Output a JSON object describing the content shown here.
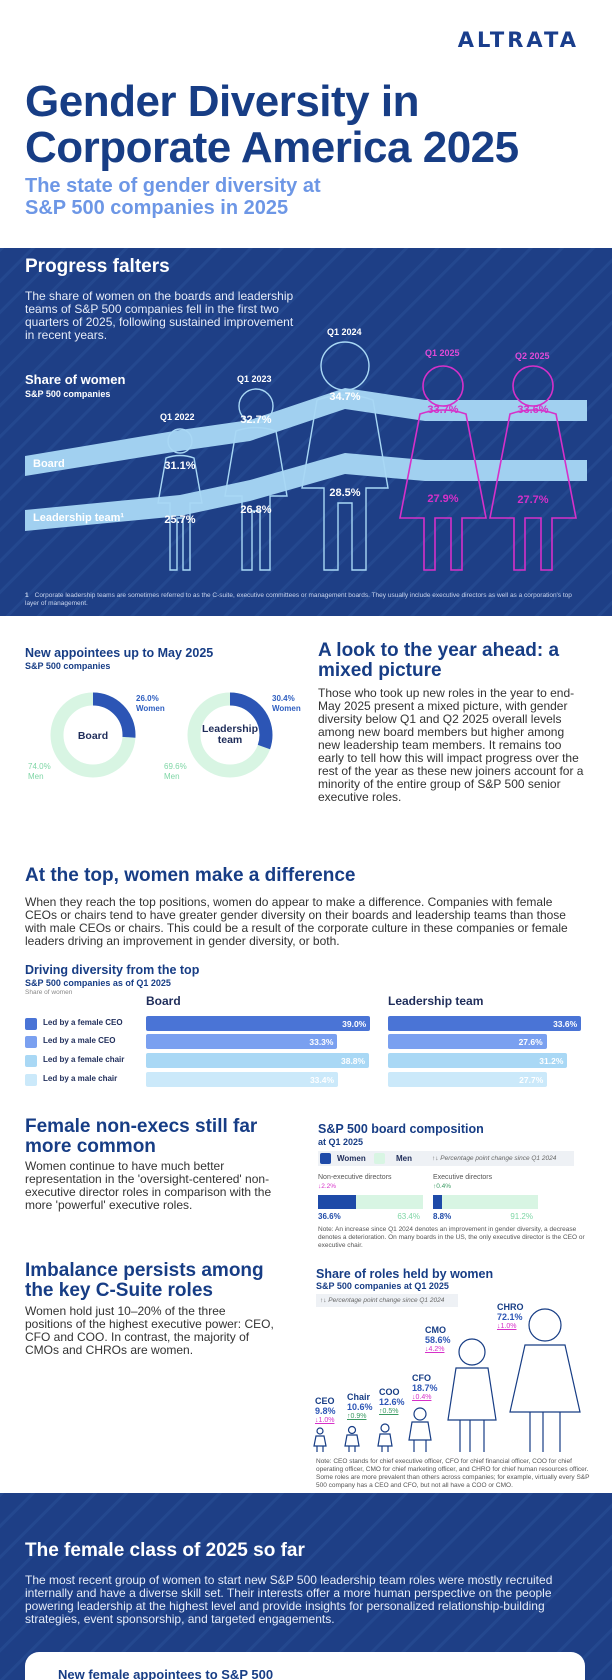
{
  "brand": "ALTRATA",
  "header": {
    "title": "Gender Diversity in Corporate America 2025",
    "subtitle": "The state of gender diversity at S&P 500 companies in 2025"
  },
  "progress": {
    "title": "Progress falters",
    "description": "The share of women on the boards and leadership teams of S&P 500 companies fell in the first two quarters of 2025, following sustained improvement in recent years.",
    "chart_heading": "Share of women",
    "chart_subheading": "S&P 500 companies",
    "board_label": "Board",
    "leadership_label": "Leadership team¹",
    "footnote_marker": "1",
    "footnote": "Corporate leadership teams are sometimes referred to as the C-suite, executive committees or management boards. They usually include executive directors as well as a corporation's top layer of management."
  },
  "chart_data": [
    {
      "type": "line",
      "title": "Share of women",
      "subtitle": "S&P 500 companies",
      "categories": [
        "Q1 2022",
        "Q1 2023",
        "Q1 2024",
        "Q1 2025",
        "Q2 2025"
      ],
      "series": [
        {
          "name": "Board",
          "values": [
            31.1,
            32.7,
            34.7,
            33.7,
            33.6
          ],
          "labels": [
            "31.1%",
            "32.7%",
            "34.7%",
            "33.7%",
            "33.6%"
          ]
        },
        {
          "name": "Leadership team¹",
          "values": [
            25.7,
            26.8,
            28.5,
            27.9,
            27.7
          ],
          "labels": [
            "25.7%",
            "26.8%",
            "28.5%",
            "27.9%",
            "27.7%"
          ]
        }
      ]
    },
    {
      "type": "pie",
      "title": "New appointees up to May 2025",
      "subtitle": "S&P 500 companies",
      "charts": [
        {
          "name": "Board",
          "women": 26.0,
          "men": 74.0,
          "women_label": "26.0%",
          "men_label": "74.0%"
        },
        {
          "name": "Leadership team",
          "women": 30.4,
          "men": 69.6,
          "women_label": "30.4%",
          "men_label": "69.6%"
        }
      ],
      "legend": {
        "women": "Women",
        "men": "Men"
      }
    },
    {
      "type": "bar",
      "title": "Driving diversity from the top",
      "subtitle": "S&P 500 companies as of Q1 2025",
      "ylabel": "Share of women",
      "categories": [
        "Led by a female CEO",
        "Led by a male CEO",
        "Led by a female chair",
        "Led by a male chair"
      ],
      "series": [
        {
          "name": "Board",
          "values": [
            39.0,
            33.3,
            38.8,
            33.4
          ],
          "labels": [
            "39.0%",
            "33.3%",
            "38.8%",
            "33.4%"
          ]
        },
        {
          "name": "Leadership team",
          "values": [
            33.6,
            27.6,
            31.2,
            27.7
          ],
          "labels": [
            "33.6%",
            "27.6%",
            "31.2%",
            "27.7%"
          ]
        }
      ]
    },
    {
      "type": "bar",
      "title": "S&P 500 board composition",
      "subtitle": "at Q1 2025",
      "categories": [
        "Non-executive directors",
        "Executive directors"
      ],
      "series": [
        {
          "name": "Women",
          "values": [
            36.6,
            8.8
          ],
          "labels": [
            "36.6%",
            "8.8%"
          ]
        },
        {
          "name": "Men",
          "values": [
            63.4,
            91.2
          ],
          "labels": [
            "63.4%",
            "91.2%"
          ]
        }
      ],
      "changes": [
        "↓2.2%",
        "↑0.4%"
      ]
    },
    {
      "type": "bar",
      "title": "Share of roles held by women",
      "subtitle": "S&P 500 companies at Q1 2025",
      "categories": [
        "CEO",
        "Chair",
        "COO",
        "CFO",
        "CMO",
        "CHRO"
      ],
      "values": [
        9.8,
        10.6,
        12.6,
        18.7,
        58.6,
        72.1
      ],
      "labels": [
        "9.8%",
        "10.6%",
        "12.6%",
        "18.7%",
        "58.6%",
        "72.1%"
      ],
      "changes": [
        "↓1.0%",
        "↑0.9%",
        "↑0.5%",
        "↓0.4%",
        "↓4.2%",
        "↓1.0%"
      ]
    }
  ],
  "appointees": {
    "title": "New appointees up to May 2025",
    "subtitle": "S&P 500 companies",
    "board": {
      "name": "Board",
      "women_pct": "26.0%",
      "men_pct": "74.0%",
      "women": 26.0
    },
    "leadership": {
      "name": "Leadership team",
      "women_pct": "30.4%",
      "men_pct": "69.6%",
      "women": 30.4
    },
    "women_label": "Women",
    "men_label": "Men"
  },
  "year_ahead": {
    "title": "A look to the year ahead: a mixed picture",
    "body": "Those who took up new roles in the year to end-May 2025 present a mixed picture, with gender diversity below Q1 and Q2 2025 overall levels among new board members but higher among new leadership team members. It remains too early to tell how this will impact progress over the rest of the year as these new joiners account for a minority of the entire group of S&P 500 senior executive roles."
  },
  "top": {
    "title": "At the top, women make a difference",
    "body": "When they reach the top positions, women do appear to make a difference. Companies with female CEOs or chairs tend to have greater gender diversity on their boards and leadership teams than those with male CEOs or chairs. This could be a result of the corporate culture in these companies or female leaders driving an improvement in gender diversity, or both.",
    "chart_title": "Driving diversity from the top",
    "chart_subtitle": "S&P 500 companies as of Q1 2025",
    "chart_axis": "Share of women",
    "col_board": "Board",
    "col_leadership": "Leadership team",
    "rows": [
      "Led by a female CEO",
      "Led by a male CEO",
      "Led by a female chair",
      "Led by a male chair"
    ],
    "board_vals": [
      "39.0%",
      "33.3%",
      "38.8%",
      "33.4%"
    ],
    "lead_vals": [
      "33.6%",
      "27.6%",
      "31.2%",
      "27.7%"
    ]
  },
  "nonexec": {
    "title": "Female non-execs still far more common",
    "body": "Women continue to have much better representation in the 'oversight-centered' non-executive director roles in comparison with the more 'powerful' executive roles.",
    "chart_title": "S&P 500 board composition",
    "chart_subtitle": "at Q1 2025",
    "legend_women": "Women",
    "legend_men": "Men",
    "legend_change": "↑↓ Percentage point change since Q1 2024",
    "nonexec_label": "Non-executive directors",
    "nonexec_change": "↓2.2%",
    "nonexec_women": "36.6%",
    "nonexec_men": "63.4%",
    "exec_label": "Executive directors",
    "exec_change": "↑0.4%",
    "exec_women": "8.8%",
    "exec_men": "91.2%",
    "note": "Note: An increase since Q1 2024 denotes an improvement in gender diversity, a decrease denotes a deterioration. On many boards in the US, the only executive director is the CEO or executive chair."
  },
  "csuite": {
    "title": "Imbalance persists among the key C-Suite roles",
    "body": "Women hold just 10–20% of the three positions of the highest executive power: CEO, CFO and COO. In contrast, the majority of CMOs and CHROs are women.",
    "chart_title": "Share of roles held by women",
    "chart_subtitle": "S&P 500 companies at Q1 2025",
    "legend_change": "↑↓ Percentage point change since Q1 2024",
    "roles": [
      {
        "name": "CEO",
        "pct": "9.8%",
        "chg": "↓1.0%"
      },
      {
        "name": "Chair",
        "pct": "10.6%",
        "chg": "↑0.9%"
      },
      {
        "name": "COO",
        "pct": "12.6%",
        "chg": "↑0.5%"
      },
      {
        "name": "CFO",
        "pct": "18.7%",
        "chg": "↓0.4%"
      },
      {
        "name": "CMO",
        "pct": "58.6%",
        "chg": "↓4.2%"
      },
      {
        "name": "CHRO",
        "pct": "72.1%",
        "chg": "↓1.0%"
      }
    ],
    "note": "Note: CEO stands for chief executive officer, CFO for chief financial officer, COO for chief operating officer, CMO for chief marketing officer, and CHRO for chief human resources officer. Some roles are more prevalent than others across companies; for example, virtually every S&P 500 company has a CEO and CFO, but not all have a COO or CMO."
  },
  "female_class": {
    "title": "The female class of 2025 so far",
    "body": "The most recent group of women to start new S&P 500 leadership team roles were mostly recruited internally and have a diverse skill set. Their interests offer a more human perspective on the people powering leadership at the highest level and provide insights for personalized relationship-building strategies, event sponsorship, and targeted engagements.",
    "card_text": "New female appointees to S&P 500"
  },
  "colors": {
    "navy": "#1e3f86",
    "title_blue": "#173d85",
    "light_blue": "#6d97e6",
    "band": "#a9d8f5",
    "magenta": "#d630c9",
    "women_bar": "#2c55b5",
    "men_green": "#d8f5e3"
  }
}
